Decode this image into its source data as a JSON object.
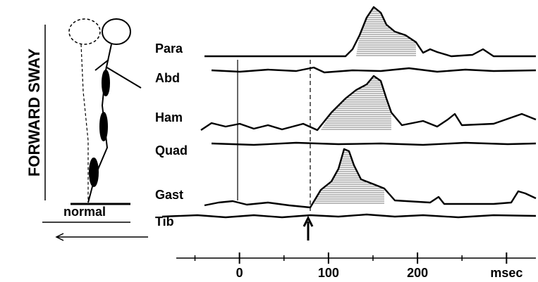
{
  "figure": {
    "side_label": "FORWARD SWAY",
    "posture_label": "normal"
  },
  "chart_data": {
    "type": "emg-traces",
    "traces": [
      "Para",
      "Abd",
      "Ham",
      "Quad",
      "Gast",
      "Tib"
    ],
    "xlim": [
      -71,
      333
    ],
    "xticks": [
      0,
      100,
      200,
      {
        "value": 300,
        "label": "msec"
      }
    ],
    "minor_xticks": [
      -50,
      50,
      150,
      250
    ]
  }
}
